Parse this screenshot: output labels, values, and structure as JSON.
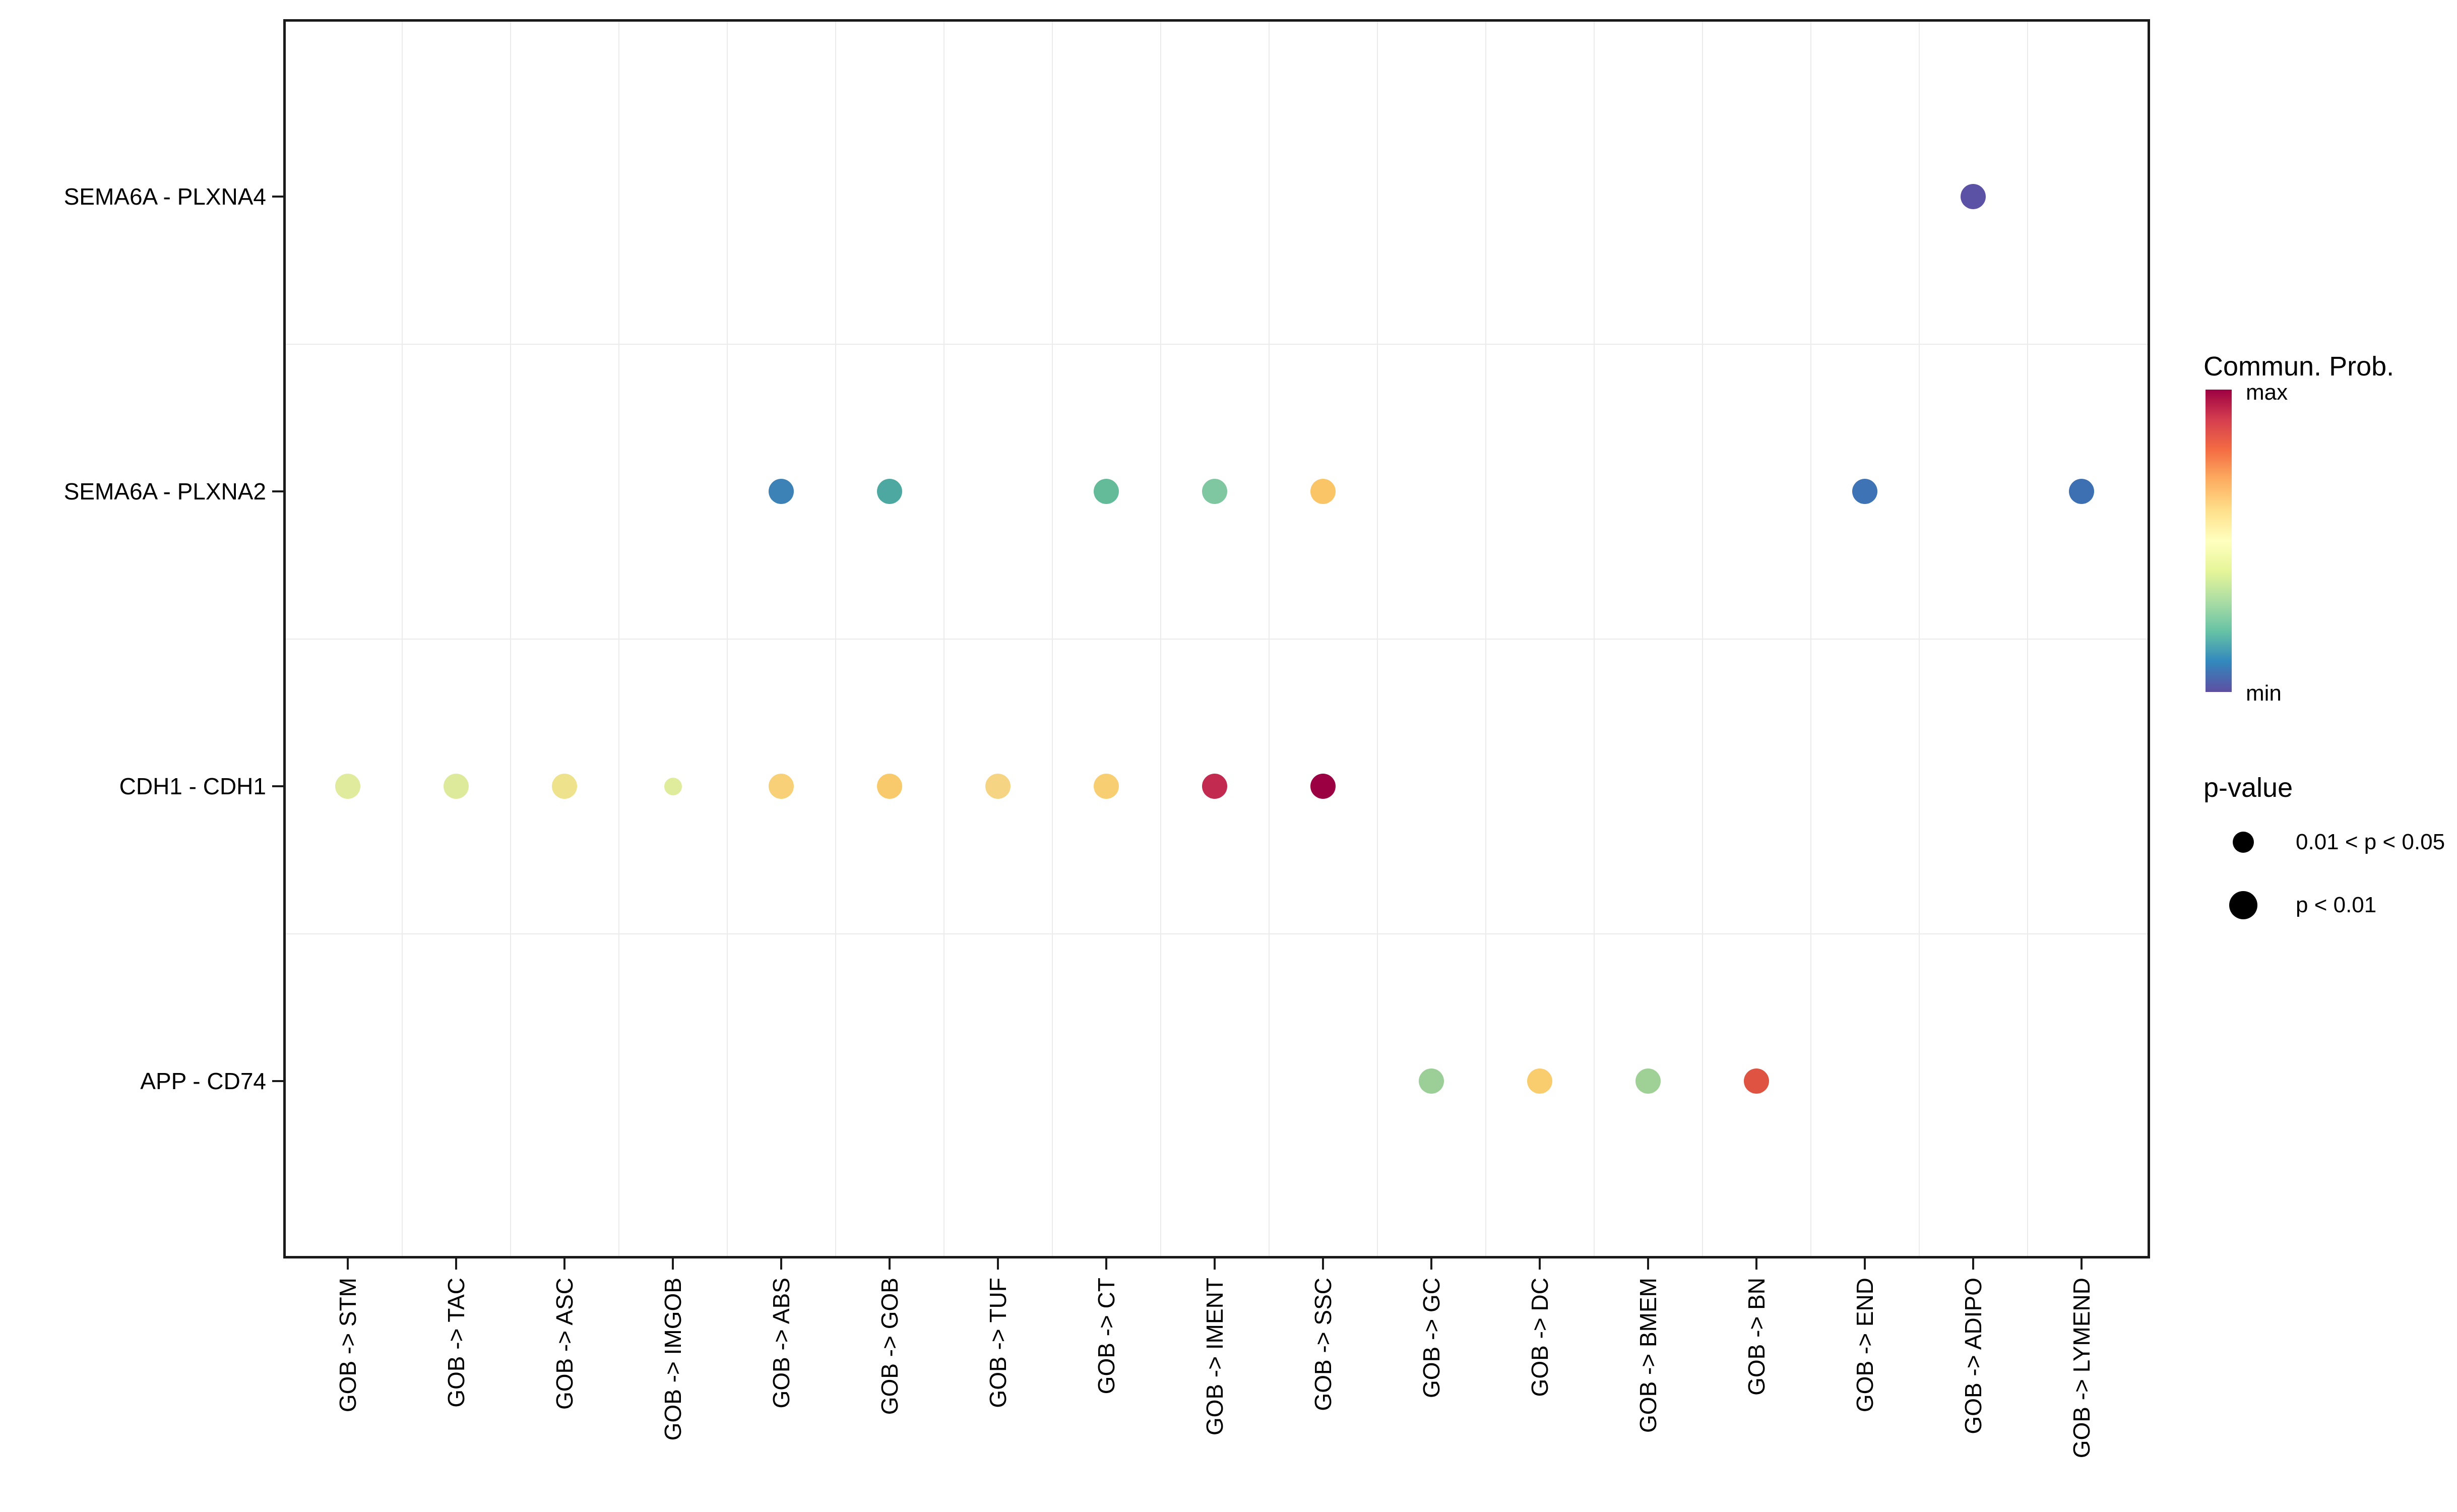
{
  "chart_data": {
    "type": "scatter",
    "subtype": "bubble-dotplot",
    "title": "",
    "xlabel": "",
    "ylabel": "",
    "grid": true,
    "x_categories": [
      "GOB -> STM",
      "GOB -> TAC",
      "GOB -> ASC",
      "GOB -> IMGOB",
      "GOB -> ABS",
      "GOB -> GOB",
      "GOB -> TUF",
      "GOB -> CT",
      "GOB -> IMENT",
      "GOB -> SSC",
      "GOB -> GC",
      "GOB -> DC",
      "GOB -> BMEM",
      "GOB -> BN",
      "GOB -> END",
      "GOB -> ADIPO",
      "GOB -> LYMEND"
    ],
    "y_categories": [
      "SEMA6A - PLXNA4",
      "SEMA6A - PLXNA2",
      "CDH1 - CDH1",
      "APP - CD74"
    ],
    "points": [
      {
        "x": "GOB -> ADIPO",
        "y": "SEMA6A - PLXNA4",
        "color": "#5C52A5",
        "prob_rel": 0.02,
        "p": "p < 0.01"
      },
      {
        "x": "GOB -> ABS",
        "y": "SEMA6A - PLXNA2",
        "color": "#3C82B7",
        "prob_rel": 0.1,
        "p": "p < 0.01"
      },
      {
        "x": "GOB -> GOB",
        "y": "SEMA6A - PLXNA2",
        "color": "#4EA8A2",
        "prob_rel": 0.17,
        "p": "p < 0.01"
      },
      {
        "x": "GOB -> CT",
        "y": "SEMA6A - PLXNA2",
        "color": "#64BB9A",
        "prob_rel": 0.22,
        "p": "p < 0.01"
      },
      {
        "x": "GOB -> IMENT",
        "y": "SEMA6A - PLXNA2",
        "color": "#7FC7A0",
        "prob_rel": 0.27,
        "p": "p < 0.01"
      },
      {
        "x": "GOB -> SSC",
        "y": "SEMA6A - PLXNA2",
        "color": "#F9C567",
        "prob_rel": 0.66,
        "p": "p < 0.01"
      },
      {
        "x": "GOB -> END",
        "y": "SEMA6A - PLXNA2",
        "color": "#3E73B5",
        "prob_rel": 0.08,
        "p": "p < 0.01"
      },
      {
        "x": "GOB -> LYMEND",
        "y": "SEMA6A - PLXNA2",
        "color": "#3D6FB3",
        "prob_rel": 0.07,
        "p": "p < 0.01"
      },
      {
        "x": "GOB -> STM",
        "y": "CDH1 - CDH1",
        "color": "#E0EB9D",
        "prob_rel": 0.43,
        "p": "p < 0.01"
      },
      {
        "x": "GOB -> TAC",
        "y": "CDH1 - CDH1",
        "color": "#DEEA9B",
        "prob_rel": 0.43,
        "p": "p < 0.01"
      },
      {
        "x": "GOB -> ASC",
        "y": "CDH1 - CDH1",
        "color": "#EFE28C",
        "prob_rel": 0.5,
        "p": "p < 0.01"
      },
      {
        "x": "GOB -> IMGOB",
        "y": "CDH1 - CDH1",
        "color": "#DFEC9B",
        "prob_rel": 0.43,
        "p": "0.01 < p < 0.05"
      },
      {
        "x": "GOB -> ABS",
        "y": "CDH1 - CDH1",
        "color": "#F8D078",
        "prob_rel": 0.63,
        "p": "p < 0.01"
      },
      {
        "x": "GOB -> GOB",
        "y": "CDH1 - CDH1",
        "color": "#F8CA6B",
        "prob_rel": 0.65,
        "p": "p < 0.01"
      },
      {
        "x": "GOB -> TUF",
        "y": "CDH1 - CDH1",
        "color": "#F5D584",
        "prob_rel": 0.6,
        "p": "p < 0.01"
      },
      {
        "x": "GOB -> CT",
        "y": "CDH1 - CDH1",
        "color": "#F8CE72",
        "prob_rel": 0.64,
        "p": "p < 0.01"
      },
      {
        "x": "GOB -> IMENT",
        "y": "CDH1 - CDH1",
        "color": "#C32A50",
        "prob_rel": 0.93,
        "p": "p < 0.01"
      },
      {
        "x": "GOB -> SSC",
        "y": "CDH1 - CDH1",
        "color": "#9B0142",
        "prob_rel": 1.0,
        "p": "p < 0.01"
      },
      {
        "x": "GOB -> GC",
        "y": "APP - CD74",
        "color": "#9CCE97",
        "prob_rel": 0.32,
        "p": "p < 0.01"
      },
      {
        "x": "GOB -> DC",
        "y": "APP - CD74",
        "color": "#F9CD6E",
        "prob_rel": 0.64,
        "p": "p < 0.01"
      },
      {
        "x": "GOB -> BMEM",
        "y": "APP - CD74",
        "color": "#9FD096",
        "prob_rel": 0.31,
        "p": "p < 0.01"
      },
      {
        "x": "GOB -> BN",
        "y": "APP - CD74",
        "color": "#DE5341",
        "prob_rel": 0.87,
        "p": "p < 0.01"
      }
    ],
    "legend": {
      "color": {
        "title": "Commun. Prob.",
        "max_label": "max",
        "min_label": "min",
        "gradient": [
          "#9E0142",
          "#D53E4F",
          "#F46D43",
          "#FDAE61",
          "#FEE08B",
          "#FFFFBF",
          "#E6F598",
          "#ABDDA4",
          "#66C2A5",
          "#3288BD",
          "#5E4FA2"
        ]
      },
      "size": {
        "title": "p-value",
        "items": [
          {
            "label": "0.01 < p < 0.05",
            "size": "small"
          },
          {
            "label": "p < 0.01",
            "size": "large"
          }
        ]
      },
      "position": "right"
    },
    "axes": {
      "x_tick_rotation": -90,
      "x_range": [
        1,
        17
      ],
      "y_range": [
        1,
        4
      ]
    }
  }
}
